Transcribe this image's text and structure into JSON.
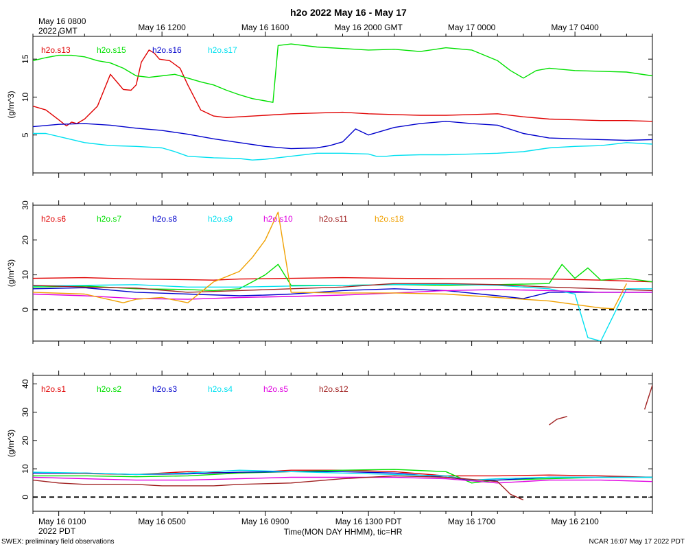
{
  "title": "h2o 2022 May 16 - May 17",
  "top_axis": {
    "first_label_line1": "May 16 0800",
    "first_label_line2": "2022 GMT",
    "labels": [
      "May 16 1200",
      "May 16 1600",
      "May 16 2000 GMT",
      "May 17 0000",
      "May 17 0400"
    ]
  },
  "bottom_axis": {
    "first_label_line1": "May 16 0100",
    "first_label_line2": "2022 PDT",
    "labels": [
      "May 16 0500",
      "May 16 0900",
      "May 16 1300 PDT",
      "May 16 1700",
      "May 16 2100"
    ],
    "xlabel": "Time(MON DAY HHMM), tic=HR"
  },
  "footer": {
    "left": "SWEX: preliminary field observations",
    "right": "NCAR 16:07 May 17 2022 PDT"
  },
  "colors": {
    "red": "#e00000",
    "green": "#00e000",
    "blue": "#0000cc",
    "cyan": "#00e0f0",
    "magenta": "#e000e0",
    "brown": "#a02020",
    "orange": "#f0a000"
  },
  "chart_data": [
    {
      "type": "line",
      "ylabel": "(g/m^3)",
      "xlim": [
        0,
        24
      ],
      "x_units": "hours since May 16 0000 PDT",
      "ylim": [
        0,
        18
      ],
      "yticks": [
        5,
        10,
        15
      ],
      "zero_line": false,
      "series": [
        {
          "name": "h2o.s13",
          "color": "#e00000",
          "x": [
            0,
            0.5,
            1,
            1.3,
            1.5,
            1.7,
            2.0,
            2.5,
            3.0,
            3.3,
            3.5,
            3.8,
            4.0,
            4.2,
            4.5,
            4.7,
            4.9,
            5.3,
            5.7,
            6.0,
            6.5,
            7.0,
            7.5,
            8,
            9,
            10,
            11,
            12,
            13,
            14,
            15,
            16,
            17,
            18,
            19,
            20,
            21,
            22,
            23,
            24
          ],
          "y": [
            8.8,
            8.3,
            7.0,
            6.2,
            6.7,
            6.5,
            7.1,
            8.8,
            13.0,
            11.8,
            11.0,
            10.9,
            11.6,
            14.6,
            16.2,
            15.8,
            15.0,
            14.8,
            13.8,
            11.6,
            8.3,
            7.5,
            7.3,
            7.4,
            7.6,
            7.8,
            7.9,
            8.0,
            7.8,
            7.7,
            7.6,
            7.6,
            7.7,
            7.8,
            7.4,
            7.1,
            7.0,
            6.9,
            6.9,
            6.8
          ]
        },
        {
          "name": "h2o.s15",
          "color": "#00e000",
          "x": [
            0,
            0.5,
            1,
            1.5,
            2,
            2.5,
            3,
            3.5,
            4,
            4.5,
            5,
            5.5,
            6,
            6.5,
            7,
            7.5,
            8,
            8.5,
            9,
            9.3,
            9.5,
            10,
            11,
            12,
            13,
            14,
            15,
            16,
            17,
            18,
            18.5,
            19,
            19.5,
            20,
            21,
            22,
            23,
            24
          ],
          "y": [
            14.8,
            15.2,
            15.5,
            15.5,
            15.3,
            14.8,
            14.5,
            13.8,
            12.8,
            12.6,
            12.8,
            13.0,
            12.5,
            12.0,
            11.6,
            10.9,
            10.3,
            9.8,
            9.5,
            9.3,
            16.8,
            17.0,
            16.6,
            16.4,
            16.2,
            16.3,
            16.0,
            16.5,
            16.2,
            14.8,
            13.5,
            12.5,
            13.5,
            13.8,
            13.5,
            13.4,
            13.3,
            12.8
          ]
        },
        {
          "name": "h2o.s16",
          "color": "#0000cc",
          "x": [
            0,
            1,
            2,
            3,
            4,
            5,
            6,
            7,
            8,
            9,
            10,
            11,
            11.5,
            12,
            12.5,
            13,
            14,
            15,
            16,
            17,
            18,
            19,
            20,
            21,
            22,
            23,
            24
          ],
          "y": [
            6.1,
            6.4,
            6.5,
            6.3,
            5.9,
            5.6,
            5.1,
            4.5,
            4.0,
            3.5,
            3.2,
            3.3,
            3.6,
            4.1,
            5.8,
            5.0,
            6.0,
            6.5,
            6.8,
            6.5,
            6.3,
            5.2,
            4.6,
            4.5,
            4.4,
            4.3,
            4.4
          ]
        },
        {
          "name": "h2o.s17",
          "color": "#00e0f0",
          "x": [
            0,
            0.5,
            1,
            2,
            3,
            4,
            5,
            5.5,
            6,
            7,
            8,
            8.5,
            9,
            10,
            11,
            12,
            13,
            13.3,
            13.7,
            14,
            15,
            16,
            17,
            18,
            19,
            20,
            21,
            22,
            23,
            24
          ],
          "y": [
            5.2,
            5.2,
            4.8,
            4.0,
            3.6,
            3.5,
            3.3,
            2.8,
            2.2,
            2.0,
            1.9,
            1.7,
            1.8,
            2.2,
            2.6,
            2.6,
            2.5,
            2.2,
            2.2,
            2.3,
            2.4,
            2.4,
            2.5,
            2.6,
            2.8,
            3.3,
            3.5,
            3.6,
            4.0,
            3.8
          ]
        }
      ]
    },
    {
      "type": "line",
      "ylabel": "(g/m^3)",
      "xlim": [
        0,
        24
      ],
      "x_units": "hours since May 16 0000 PDT",
      "ylim": [
        -9,
        30
      ],
      "yticks": [
        0,
        10,
        20,
        30
      ],
      "zero_line": true,
      "series": [
        {
          "name": "h2o.s6",
          "color": "#e00000",
          "x": [
            0,
            2,
            4,
            6,
            7,
            8,
            10,
            12,
            14,
            16,
            18,
            20,
            22,
            24
          ],
          "y": [
            9.0,
            9.2,
            8.8,
            8.6,
            8.5,
            8.8,
            9.0,
            9.2,
            9.0,
            8.9,
            8.9,
            8.8,
            8.5,
            8.0
          ]
        },
        {
          "name": "h2o.s7",
          "color": "#00e000",
          "x": [
            0,
            2,
            4,
            6,
            7,
            8,
            8.5,
            9,
            9.5,
            10,
            11,
            12,
            14,
            16,
            18,
            20,
            20.5,
            21,
            21.5,
            22,
            23,
            24
          ],
          "y": [
            6.5,
            6.8,
            6.0,
            5.8,
            5.5,
            6.0,
            8.0,
            10.0,
            13.0,
            7.0,
            7.0,
            7.0,
            7.2,
            7.0,
            7.2,
            7.5,
            13.0,
            9.0,
            12.0,
            8.5,
            9.0,
            8.0
          ]
        },
        {
          "name": "h2o.s8",
          "color": "#0000cc",
          "x": [
            0,
            2,
            4,
            6,
            8,
            9,
            10,
            12,
            14,
            16,
            18,
            19,
            20,
            22,
            24
          ],
          "y": [
            6.0,
            6.3,
            5.0,
            4.5,
            4.0,
            4.2,
            4.5,
            5.5,
            6.0,
            5.5,
            4.0,
            3.2,
            5.0,
            5.0,
            5.0
          ]
        },
        {
          "name": "h2o.s9",
          "color": "#00e0f0",
          "x": [
            0,
            2,
            4,
            6,
            8,
            10,
            12,
            14,
            16,
            18,
            20,
            21,
            21.5,
            22,
            23,
            24
          ],
          "y": [
            6.8,
            7.0,
            7.2,
            6.5,
            6.5,
            6.8,
            7.0,
            7.2,
            7.3,
            7.0,
            6.0,
            4.5,
            -8.0,
            -9.0,
            6.0,
            6.0
          ]
        },
        {
          "name": "h2o.s10",
          "color": "#e000e0",
          "x": [
            0,
            2,
            4,
            6,
            8,
            10,
            12,
            14,
            16,
            18,
            20,
            22,
            24
          ],
          "y": [
            4.5,
            4.0,
            3.2,
            3.0,
            3.5,
            3.8,
            4.2,
            4.8,
            5.5,
            5.8,
            5.5,
            5.0,
            5.0
          ]
        },
        {
          "name": "h2o.s11",
          "color": "#a02020",
          "x": [
            0,
            2,
            4,
            6,
            8,
            10,
            12,
            14,
            16,
            18,
            20,
            22,
            24
          ],
          "y": [
            7.0,
            6.5,
            6.2,
            5.0,
            5.5,
            6.0,
            6.5,
            7.5,
            7.5,
            7.2,
            6.5,
            6.0,
            5.5
          ]
        },
        {
          "name": "h2o.s18",
          "color": "#f0a000",
          "x": [
            0,
            2,
            3.5,
            4,
            5,
            6,
            7,
            8,
            8.5,
            9,
            9.5,
            10,
            12,
            14,
            16,
            18,
            20,
            21,
            22,
            22.5,
            23
          ],
          "y": [
            5.0,
            4.5,
            2.0,
            3.0,
            3.5,
            2.0,
            8.0,
            11.0,
            15.0,
            20.0,
            28.0,
            5.0,
            4.8,
            4.8,
            4.5,
            3.5,
            2.5,
            1.5,
            0.5,
            0.3,
            7.5
          ]
        }
      ]
    },
    {
      "type": "line",
      "ylabel": "(g/m^3)",
      "xlim": [
        0,
        24
      ],
      "x_units": "hours since May 16 0000 PDT",
      "ylim": [
        -5,
        43
      ],
      "yticks": [
        0,
        10,
        20,
        30,
        40
      ],
      "zero_line": true,
      "series": [
        {
          "name": "h2o.s1",
          "color": "#e00000",
          "x": [
            0,
            2,
            4,
            6,
            8,
            9,
            10,
            12,
            14,
            16,
            18,
            20,
            22,
            24
          ],
          "y": [
            8.5,
            8.3,
            8.0,
            9.0,
            8.5,
            9.0,
            9.5,
            9.5,
            9.0,
            7.5,
            7.5,
            7.8,
            7.5,
            7.0
          ]
        },
        {
          "name": "h2o.s2",
          "color": "#00e000",
          "x": [
            0,
            2,
            4,
            6,
            8,
            10,
            12,
            14,
            16,
            17,
            18,
            20,
            22,
            24
          ],
          "y": [
            7.5,
            7.5,
            7.2,
            7.5,
            8.5,
            9.0,
            9.5,
            9.8,
            9.0,
            5.0,
            6.0,
            6.5,
            7.0,
            7.0
          ]
        },
        {
          "name": "h2o.s3",
          "color": "#0000cc",
          "x": [
            0,
            2,
            4,
            6,
            8,
            10,
            12,
            14,
            16,
            17,
            18,
            20,
            22,
            24
          ],
          "y": [
            8.5,
            8.5,
            8.0,
            8.2,
            8.8,
            9.0,
            9.0,
            8.5,
            7.0,
            6.0,
            6.0,
            7.0,
            7.0,
            7.0
          ]
        },
        {
          "name": "h2o.s4",
          "color": "#00e0f0",
          "x": [
            0,
            2,
            4,
            6,
            8,
            10,
            12,
            14,
            16,
            17,
            18,
            20,
            22,
            24
          ],
          "y": [
            8.8,
            8.5,
            8.0,
            8.5,
            9.5,
            9.0,
            8.5,
            8.0,
            7.5,
            6.0,
            6.5,
            7.0,
            7.0,
            7.0
          ]
        },
        {
          "name": "h2o.s5",
          "color": "#e000e0",
          "x": [
            0,
            2,
            4,
            6,
            8,
            10,
            12,
            14,
            16,
            18,
            20,
            22,
            24
          ],
          "y": [
            7.0,
            6.5,
            6.0,
            6.0,
            6.5,
            7.0,
            7.0,
            7.0,
            6.5,
            5.0,
            6.0,
            6.0,
            5.5
          ]
        },
        {
          "name": "h2o.s12",
          "color": "#a02020",
          "x": [
            0,
            1,
            2,
            3,
            4,
            5,
            6,
            7,
            8,
            10,
            12,
            14,
            16,
            18,
            18.5,
            19
          ],
          "y": [
            6.0,
            5.0,
            4.5,
            4.5,
            4.5,
            4.0,
            4.0,
            4.0,
            4.5,
            5.0,
            6.5,
            7.5,
            7.0,
            5.5,
            1.0,
            -1.0
          ]
        },
        {
          "name": "h2o.s12b",
          "color": "#a02020",
          "x": [
            20,
            20.3,
            20.7
          ],
          "y": [
            25.5,
            27.5,
            28.5
          ]
        },
        {
          "name": "h2o.s12c",
          "color": "#a02020",
          "x": [
            23.7,
            24
          ],
          "y": [
            31.0,
            39.5
          ]
        }
      ]
    }
  ]
}
